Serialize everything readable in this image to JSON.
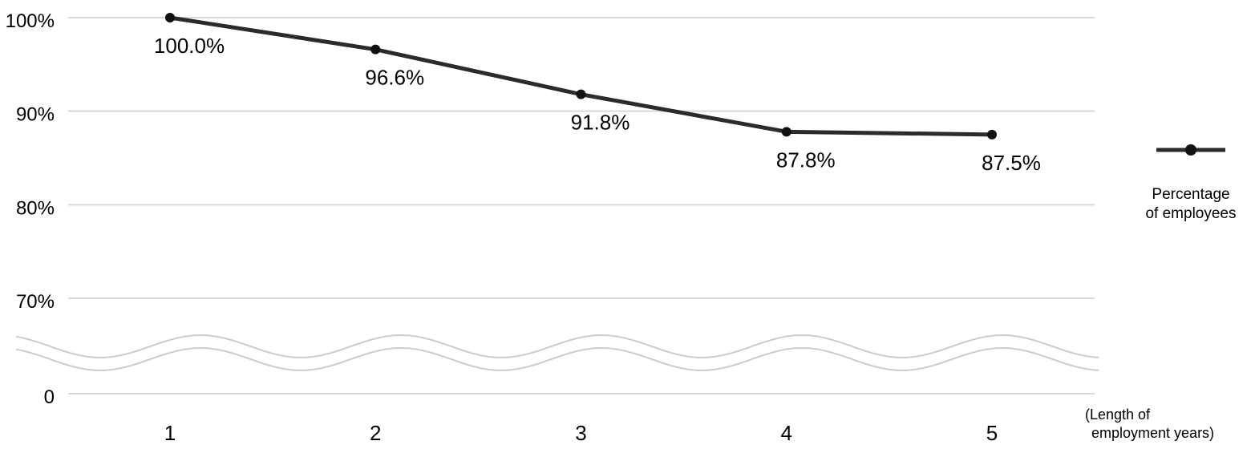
{
  "chart_data": {
    "type": "line",
    "title": "",
    "series_name": "Percentage of employees",
    "x": [
      1,
      2,
      3,
      4,
      5
    ],
    "x_tick_labels": [
      "1",
      "2",
      "3",
      "4",
      "5"
    ],
    "values": [
      100.0,
      96.6,
      91.8,
      87.8,
      87.5
    ],
    "point_labels": [
      "100.0%",
      "96.6%",
      "91.8%",
      "87.8%",
      "87.5%"
    ],
    "y_ticks": [
      {
        "label": "100%",
        "value": 100
      },
      {
        "label": "90%",
        "value": 90
      },
      {
        "label": "80%",
        "value": 80
      },
      {
        "label": "70%",
        "value": 70
      },
      {
        "label": "0",
        "value": 0
      }
    ],
    "ylim_display": [
      70,
      100
    ],
    "axis_break": true,
    "grid": "horizontal",
    "legend": {
      "position": "right",
      "line1": "Percentage",
      "line2": "of employees"
    },
    "xlabel": {
      "line1": "(Length of",
      "line2": "employment years)"
    },
    "colors": {
      "line": "#2b2b2b",
      "marker": "#111111",
      "gridline": "#d9d9d9",
      "axis_break_wave": "#cccccc",
      "text": "#000000"
    }
  }
}
